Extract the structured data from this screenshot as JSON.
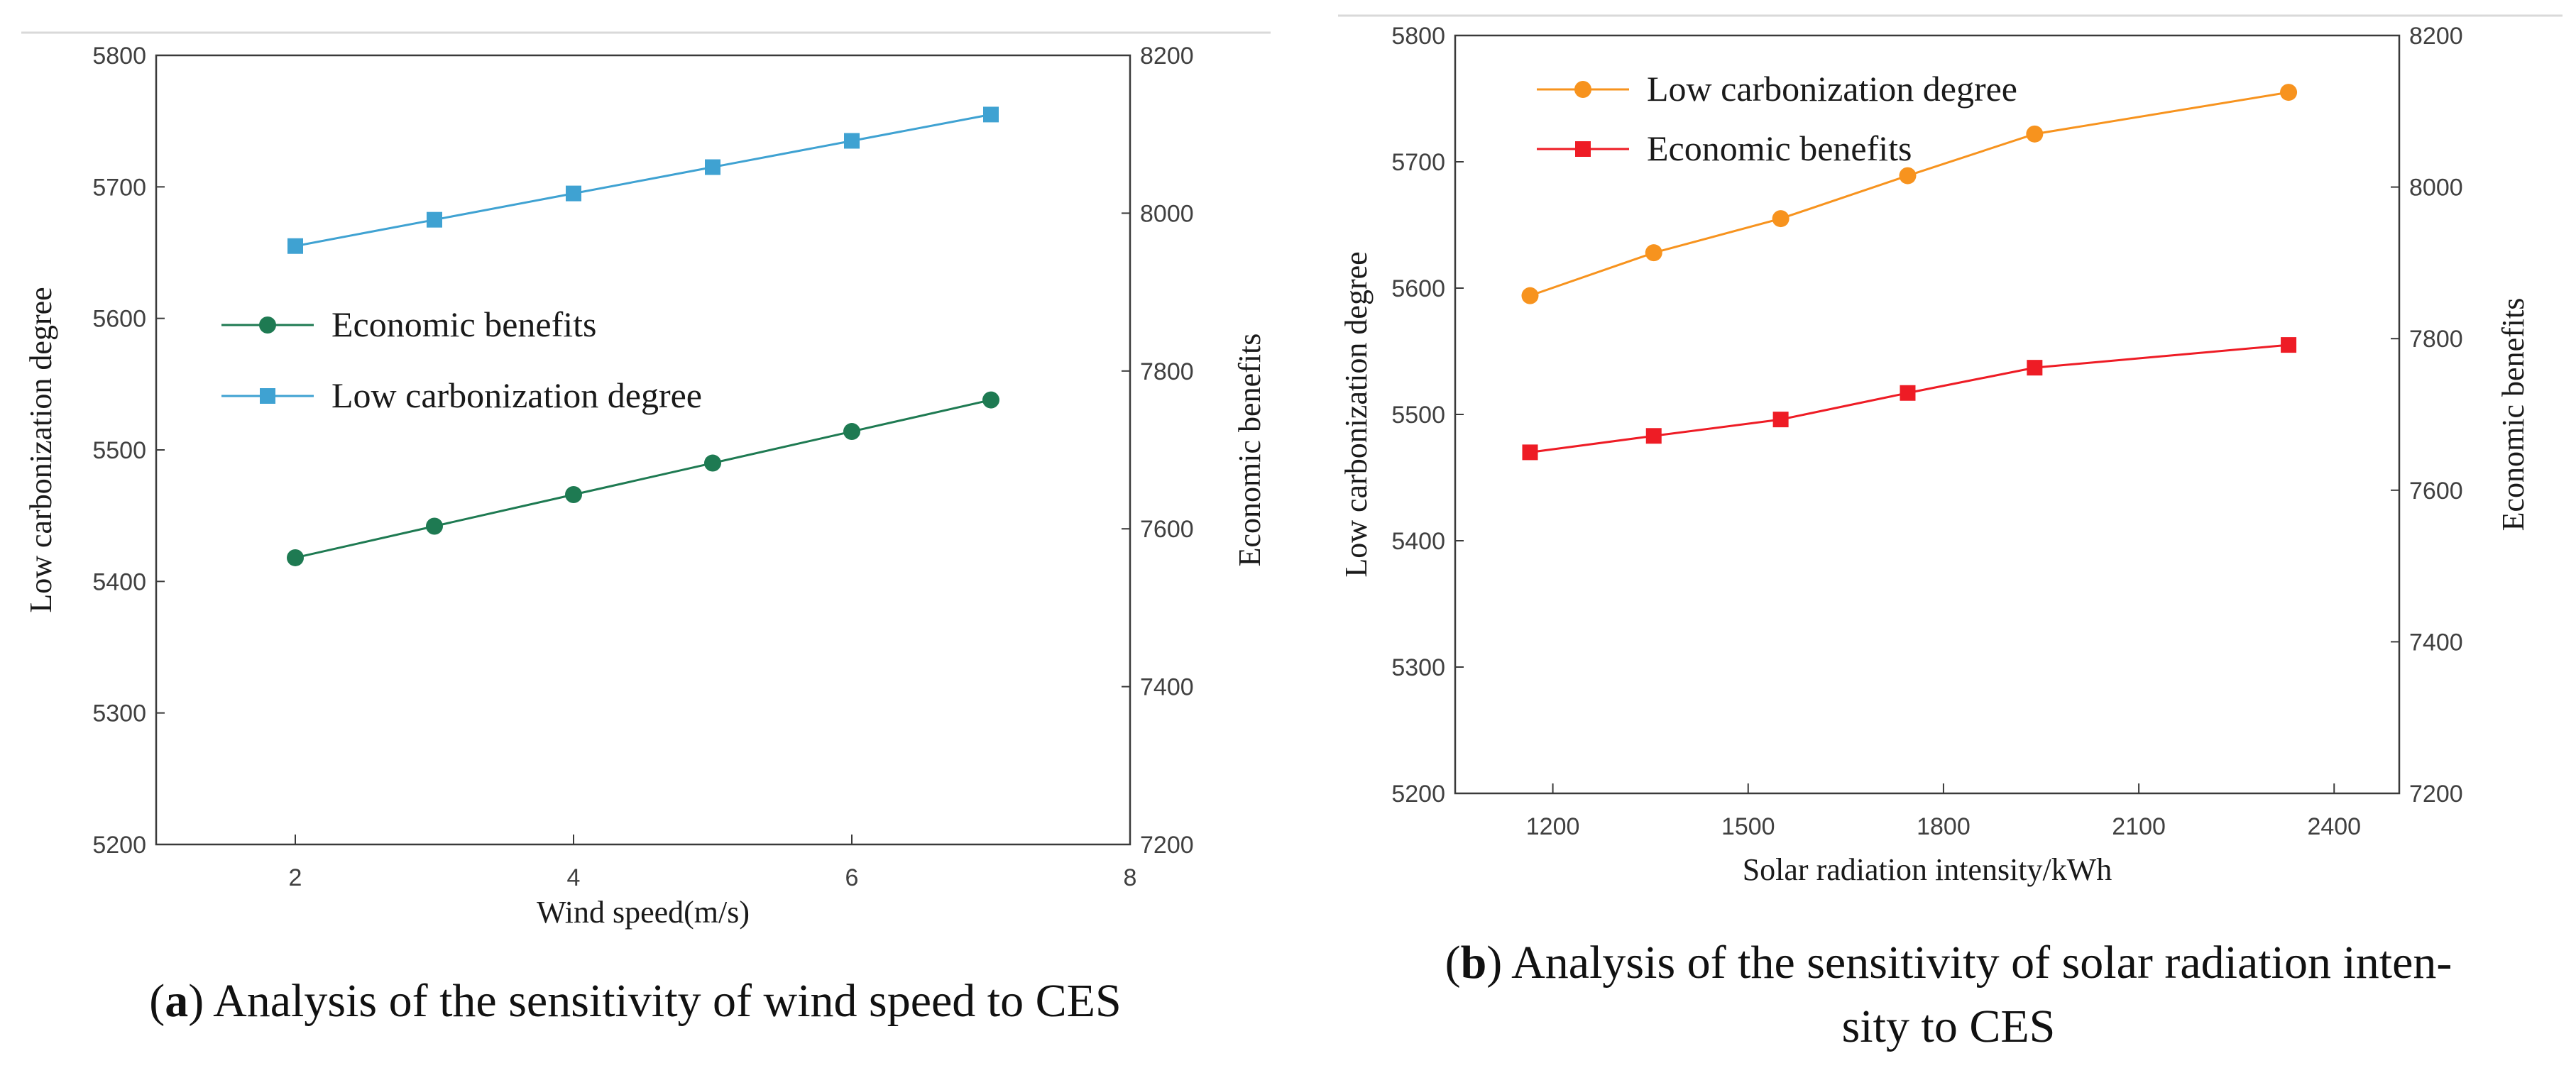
{
  "chart_data": [
    {
      "type": "line",
      "caption": {
        "open": "(",
        "letter": "a",
        "text": ") Analysis of the sensitivity of wind speed to CES"
      },
      "xlabel": "Wind speed(m/s)",
      "ylabel_left": "Low carbonization degree",
      "ylabel_right": "Economic benefits",
      "xlim": [
        1,
        8
      ],
      "ylim_left": [
        5200,
        5800
      ],
      "ylim_right": [
        7200,
        8200
      ],
      "x_ticks": [
        2,
        4,
        6,
        8
      ],
      "y_ticks_left": [
        5200,
        5300,
        5400,
        5500,
        5600,
        5700,
        5800
      ],
      "y_ticks_right": [
        7200,
        7400,
        7600,
        7800,
        8000,
        8200
      ],
      "legend_position": "center-left",
      "series": [
        {
          "name": "Economic benefits",
          "axis": "left",
          "color": "#1e7a52",
          "marker": "circle",
          "x": [
            2,
            3,
            4,
            5,
            6,
            7
          ],
          "values": [
            5418,
            5442,
            5466,
            5490,
            5514,
            5538
          ]
        },
        {
          "name": "Low carbonization degree",
          "axis": "left",
          "color": "#3fa2d2",
          "marker": "square",
          "x": [
            2,
            3,
            4,
            5,
            6,
            7
          ],
          "values": [
            5655,
            5675,
            5695,
            5715,
            5735,
            5755
          ]
        }
      ]
    },
    {
      "type": "line",
      "caption": {
        "open": "(",
        "letter": "b",
        "text": ") Analysis of the sensitivity of solar radiation inten-",
        "text2": "sity to CES"
      },
      "xlabel": "Solar radiation intensity/kWh",
      "ylabel_left": "Low carbonization degree",
      "ylabel_right": "Economic benefits",
      "xlim": [
        1050,
        2500
      ],
      "ylim_left": [
        5200,
        5800
      ],
      "ylim_right": [
        7200,
        8200
      ],
      "x_ticks": [
        1200,
        1500,
        1800,
        2100,
        2400
      ],
      "y_ticks_left": [
        5200,
        5300,
        5400,
        5500,
        5600,
        5700,
        5800
      ],
      "y_ticks_right": [
        7200,
        7400,
        7600,
        7800,
        8000,
        8200
      ],
      "legend_position": "top-left",
      "series": [
        {
          "name": "Low carbonization degree",
          "axis": "left",
          "color": "#f7931e",
          "marker": "circle",
          "x": [
            1165,
            1355,
            1550,
            1745,
            1940,
            2330
          ],
          "values": [
            5594,
            5628,
            5655,
            5689,
            5722,
            5755
          ]
        },
        {
          "name": "Economic benefits",
          "axis": "left",
          "color": "#ee1c25",
          "marker": "square",
          "x": [
            1165,
            1355,
            1550,
            1745,
            1940,
            2330
          ],
          "values": [
            5470,
            5483,
            5496,
            5517,
            5537,
            5555
          ]
        }
      ]
    }
  ]
}
